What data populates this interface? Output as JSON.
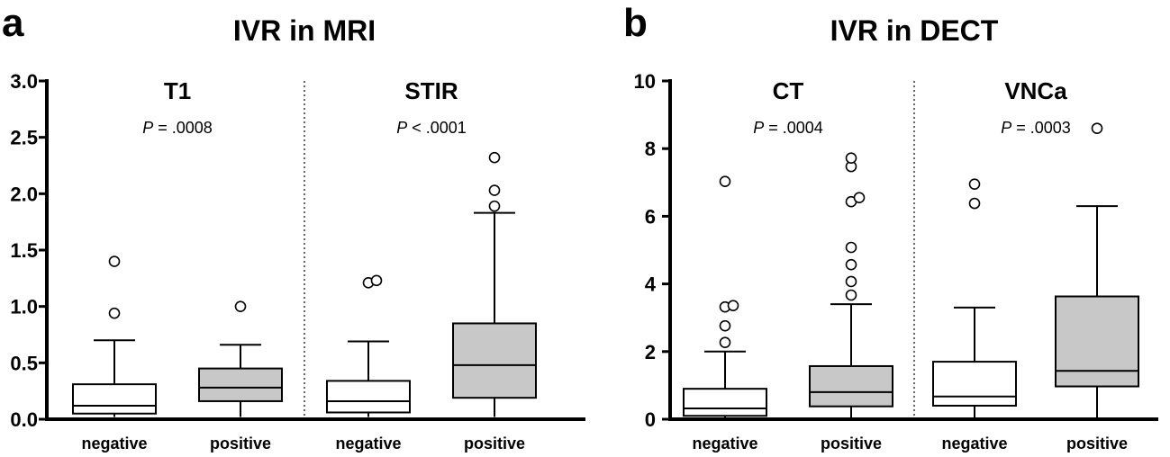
{
  "panels": [
    {
      "letter": "a",
      "title": "IVR in MRI",
      "colors": {
        "negative": "#ffffff",
        "positive": "#c8c8c8"
      },
      "chart_data": {
        "type": "box",
        "ylim": [
          0,
          3.0
        ],
        "yticks": [
          "0.0",
          "0.5",
          "1.0",
          "1.5",
          "2.0",
          "2.5",
          "3.0"
        ],
        "ytick_values": [
          0,
          0.5,
          1.0,
          1.5,
          2.0,
          2.5,
          3.0
        ],
        "groups": [
          {
            "name": "T1",
            "pvalue_label": "P",
            "pvalue_text": " = .0008",
            "boxes": [
              {
                "category": "negative",
                "whisker_low": 0.02,
                "q1": 0.05,
                "median": 0.12,
                "q3": 0.31,
                "whisker_high": 0.7,
                "outliers": [
                  0.94,
                  1.4
                ]
              },
              {
                "category": "positive",
                "whisker_low": 0.02,
                "q1": 0.16,
                "median": 0.28,
                "q3": 0.45,
                "whisker_high": 0.66,
                "outliers": [
                  1.0
                ]
              }
            ]
          },
          {
            "name": "STIR",
            "pvalue_label": "P",
            "pvalue_text": " < .0001",
            "boxes": [
              {
                "category": "negative",
                "whisker_low": 0.02,
                "q1": 0.06,
                "median": 0.16,
                "q3": 0.34,
                "whisker_high": 0.69,
                "outliers": [
                  1.21,
                  1.23
                ]
              },
              {
                "category": "positive",
                "whisker_low": 0.02,
                "q1": 0.19,
                "median": 0.48,
                "q3": 0.85,
                "whisker_high": 1.83,
                "outliers": [
                  1.89,
                  2.03,
                  2.32
                ]
              }
            ]
          }
        ]
      }
    },
    {
      "letter": "b",
      "title": "IVR in DECT",
      "colors": {
        "negative": "#ffffff",
        "positive": "#c8c8c8"
      },
      "chart_data": {
        "type": "box",
        "ylim": [
          0,
          10
        ],
        "yticks": [
          "0",
          "2",
          "4",
          "6",
          "8",
          "10"
        ],
        "ytick_values": [
          0,
          2,
          4,
          6,
          8,
          10
        ],
        "groups": [
          {
            "name": "CT",
            "pvalue_label": "P",
            "pvalue_text": " = .0004",
            "boxes": [
              {
                "category": "negative",
                "whisker_low": 0.05,
                "q1": 0.1,
                "median": 0.32,
                "q3": 0.9,
                "whisker_high": 2.0,
                "outliers": [
                  2.27,
                  2.76,
                  3.32,
                  3.36,
                  7.03
                ]
              },
              {
                "category": "positive",
                "whisker_low": 0.05,
                "q1": 0.38,
                "median": 0.8,
                "q3": 1.57,
                "whisker_high": 3.4,
                "outliers": [
                  3.67,
                  4.07,
                  4.57,
                  5.08,
                  6.43,
                  6.55,
                  7.47,
                  7.72
                ]
              }
            ]
          },
          {
            "name": "VNCa",
            "pvalue_label": "P",
            "pvalue_text": " = .0003",
            "boxes": [
              {
                "category": "negative",
                "whisker_low": 0.05,
                "q1": 0.4,
                "median": 0.67,
                "q3": 1.7,
                "whisker_high": 3.3,
                "outliers": [
                  6.38,
                  6.95
                ]
              },
              {
                "category": "positive",
                "whisker_low": 0.05,
                "q1": 0.97,
                "median": 1.43,
                "q3": 3.63,
                "whisker_high": 6.3,
                "outliers": [
                  8.6
                ]
              }
            ]
          }
        ]
      }
    }
  ]
}
